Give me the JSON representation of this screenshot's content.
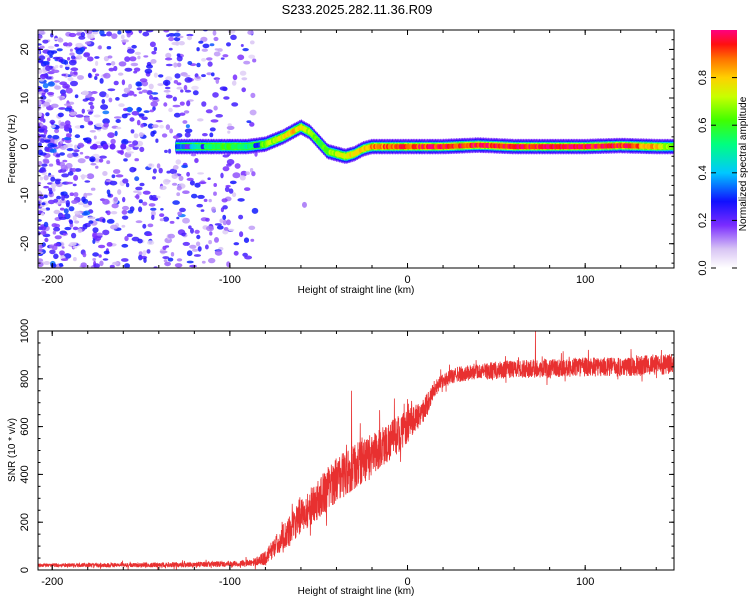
{
  "figure_title": "S233.2025.282.11.36.R09",
  "colors": {
    "snr_line": "#e83030",
    "axis": "#000000",
    "background": "#ffffff"
  },
  "colorbar": {
    "label": "Normalized spectral amplitude",
    "ticks": [
      "0.0",
      "0.2",
      "0.4",
      "0.6",
      "0.8"
    ],
    "range": [
      0.0,
      1.0
    ]
  },
  "chart_data": [
    {
      "id": "spectrogram",
      "type": "heatmap",
      "title": "S233.2025.282.11.36.R09",
      "xlabel": "Height of straight line (km)",
      "ylabel": "Frequency (Hz)",
      "xlim": [
        -208,
        150
      ],
      "ylim": [
        -25,
        24
      ],
      "xticks": [
        "-200",
        "-100",
        "0",
        "100"
      ],
      "xtick_values": [
        -200,
        -100,
        0,
        100
      ],
      "yticks": [
        "-20",
        "-10",
        "0",
        "10",
        "20"
      ],
      "ytick_values": [
        -20,
        -10,
        0,
        10,
        20
      ],
      "ridge": {
        "x": [
          -130,
          -120,
          -110,
          -100,
          -90,
          -80,
          -70,
          -65,
          -60,
          -55,
          -50,
          -45,
          -40,
          -35,
          -30,
          -25,
          -20,
          -15,
          -10,
          0,
          20,
          40,
          60,
          80,
          100,
          120,
          140,
          150
        ],
        "freq": [
          0,
          0,
          0,
          0,
          0,
          0.5,
          2,
          3,
          4,
          3,
          1,
          -1,
          -1.5,
          -2,
          -1.5,
          -0.5,
          0,
          0,
          0,
          0,
          0,
          0.3,
          0,
          0,
          0,
          0.2,
          0,
          0
        ],
        "amplitude": [
          0.3,
          0.45,
          0.55,
          0.6,
          0.5,
          0.65,
          0.75,
          0.8,
          0.75,
          0.7,
          0.6,
          0.65,
          0.7,
          0.75,
          0.8,
          0.8,
          0.85,
          0.88,
          0.9,
          0.92,
          0.95,
          0.95,
          0.95,
          0.96,
          0.97,
          0.96,
          0.8,
          0.6
        ]
      },
      "noise_region": {
        "x_range": [
          -208,
          -85
        ],
        "freq_range": [
          -25,
          24
        ],
        "amplitude_range": [
          0.05,
          0.3
        ]
      }
    },
    {
      "id": "snr",
      "type": "line",
      "xlabel": "Height of straight line (km)",
      "ylabel": "SNR (10 * v/v)",
      "xlim": [
        -208,
        150
      ],
      "ylim": [
        0,
        1000
      ],
      "xticks": [
        "-200",
        "-100",
        "0",
        "100"
      ],
      "xtick_values": [
        -200,
        -100,
        0,
        100
      ],
      "yticks": [
        "0",
        "200",
        "400",
        "600",
        "800",
        "1000"
      ],
      "ytick_values": [
        0,
        200,
        400,
        600,
        800,
        1000
      ],
      "series": [
        {
          "name": "SNR",
          "envelope": {
            "x": [
              -208,
              -150,
              -100,
              -88,
              -80,
              -70,
              -60,
              -50,
              -40,
              -30,
              -20,
              -10,
              0,
              10,
              15,
              20,
              25,
              30,
              40,
              60,
              80,
              100,
              120,
              140,
              150
            ],
            "mean": [
              20,
              20,
              25,
              30,
              50,
              140,
              220,
              300,
              380,
              430,
              480,
              540,
              600,
              680,
              760,
              790,
              810,
              820,
              830,
              840,
              845,
              850,
              850,
              860,
              860
            ],
            "noise": [
              6,
              8,
              10,
              12,
              25,
              45,
              60,
              70,
              80,
              80,
              80,
              70,
              60,
              40,
              30,
              25,
              25,
              28,
              30,
              32,
              32,
              34,
              34,
              36,
              36
            ]
          },
          "spikes": [
            {
              "x": -31.5,
              "y": 750
            },
            {
              "x": 72,
              "y": 1000
            }
          ]
        }
      ]
    }
  ]
}
